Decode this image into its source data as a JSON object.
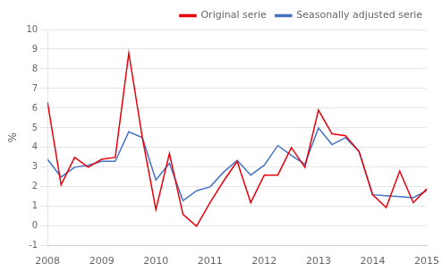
{
  "chart_data": {
    "type": "line",
    "x": [
      2008.0,
      2008.25,
      2008.5,
      2008.75,
      2009.0,
      2009.25,
      2009.5,
      2009.75,
      2010.0,
      2010.25,
      2010.5,
      2010.75,
      2011.0,
      2011.25,
      2011.5,
      2011.75,
      2012.0,
      2012.25,
      2012.5,
      2012.75,
      2013.0,
      2013.25,
      2013.5,
      2013.75,
      2014.0,
      2014.25,
      2014.5,
      2014.75,
      2015.0
    ],
    "series": [
      {
        "name": "Original serie",
        "color": "#e8000d",
        "values": [
          6.3,
          2.1,
          3.5,
          3.0,
          3.4,
          3.5,
          8.8,
          4.5,
          0.85,
          3.7,
          0.6,
          0.0,
          1.2,
          2.3,
          3.3,
          1.2,
          2.6,
          2.6,
          4.0,
          3.0,
          5.9,
          4.7,
          4.6,
          3.8,
          1.6,
          0.95,
          2.8,
          1.2,
          1.9
        ]
      },
      {
        "name": "Seasonally adjusted serie",
        "color": "#4472c4",
        "values": [
          3.4,
          2.5,
          3.0,
          3.1,
          3.3,
          3.3,
          4.8,
          4.5,
          2.35,
          3.2,
          1.3,
          1.8,
          2.0,
          2.75,
          3.35,
          2.6,
          3.1,
          4.1,
          3.6,
          3.15,
          5.0,
          4.15,
          4.5,
          3.8,
          1.6,
          1.55,
          1.5,
          1.45,
          1.8
        ]
      }
    ],
    "y_label": "%",
    "xlim": [
      2008.0,
      2015.0
    ],
    "ylim": [
      -1,
      10
    ],
    "xticks": [
      2008,
      2009,
      2010,
      2011,
      2012,
      2013,
      2014,
      2015
    ],
    "yticks": [
      -1,
      0,
      1,
      2,
      3,
      4,
      5,
      6,
      7,
      8,
      9,
      10
    ],
    "grid": "y",
    "legend": "upper right"
  }
}
